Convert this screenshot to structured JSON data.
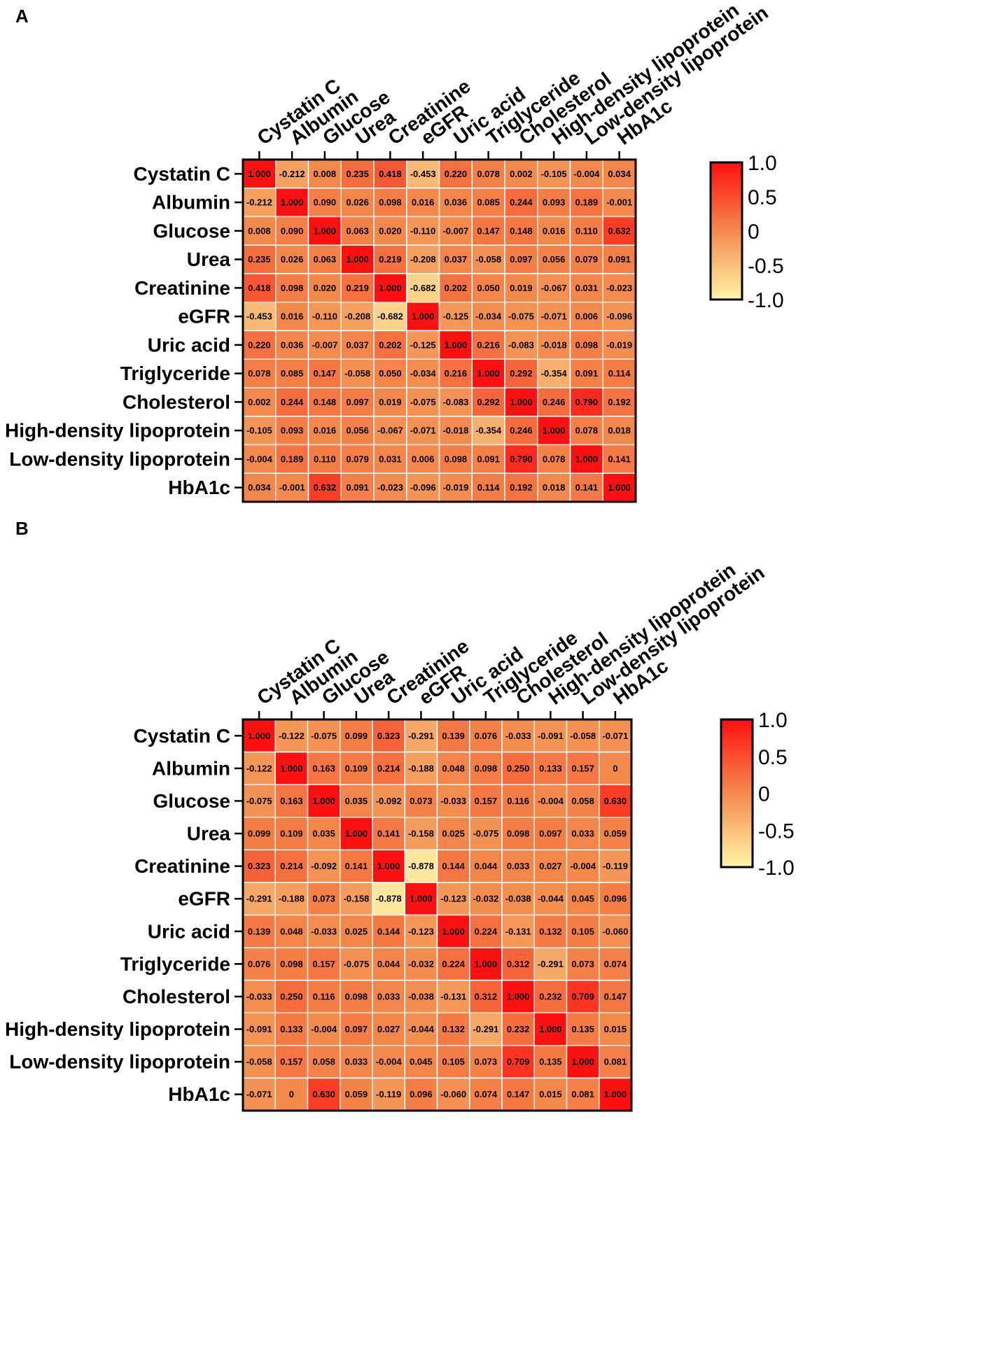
{
  "chart_data": [
    {
      "type": "heatmap",
      "panel": "A",
      "labels": [
        "Cystatin C",
        "Albumin",
        "Glucose",
        "Urea",
        "Creatinine",
        "eGFR",
        "Uric acid",
        "Triglyceride",
        "Cholesterol",
        "High-density lipoprotein",
        "Low-density lipoprotein",
        "HbA1c"
      ],
      "values": [
        [
          1.0,
          -0.212,
          0.008,
          0.235,
          0.418,
          -0.453,
          0.22,
          0.078,
          0.002,
          -0.105,
          -0.004,
          0.034
        ],
        [
          -0.212,
          1.0,
          0.09,
          0.026,
          0.098,
          0.016,
          0.036,
          0.085,
          0.244,
          0.093,
          0.189,
          -0.001
        ],
        [
          0.008,
          0.09,
          1.0,
          0.063,
          0.02,
          -0.11,
          -0.007,
          0.147,
          0.148,
          0.016,
          0.11,
          0.632
        ],
        [
          0.235,
          0.026,
          0.063,
          1.0,
          0.219,
          -0.208,
          0.037,
          -0.058,
          0.097,
          0.056,
          0.079,
          0.091
        ],
        [
          0.418,
          0.098,
          0.02,
          0.219,
          1.0,
          -0.682,
          0.202,
          0.05,
          0.019,
          -0.067,
          0.031,
          -0.023
        ],
        [
          -0.453,
          0.016,
          -0.11,
          -0.208,
          -0.682,
          1.0,
          -0.125,
          -0.034,
          -0.075,
          -0.071,
          0.006,
          -0.096
        ],
        [
          0.22,
          0.036,
          -0.007,
          0.037,
          0.202,
          -0.125,
          1.0,
          0.216,
          -0.083,
          -0.018,
          0.098,
          -0.019
        ],
        [
          0.078,
          0.085,
          0.147,
          -0.058,
          0.05,
          -0.034,
          0.216,
          1.0,
          0.292,
          -0.354,
          0.091,
          0.114
        ],
        [
          0.002,
          0.244,
          0.148,
          0.097,
          0.019,
          -0.075,
          -0.083,
          0.292,
          1.0,
          0.246,
          0.79,
          0.192
        ],
        [
          -0.105,
          0.093,
          0.016,
          0.056,
          -0.067,
          -0.071,
          -0.018,
          -0.354,
          0.246,
          1.0,
          0.078,
          0.018
        ],
        [
          -0.004,
          0.189,
          0.11,
          0.079,
          0.031,
          0.006,
          0.098,
          0.091,
          0.79,
          0.078,
          1.0,
          0.141
        ],
        [
          0.034,
          -0.001,
          0.632,
          0.091,
          -0.023,
          -0.096,
          -0.019,
          0.114,
          0.192,
          0.018,
          0.141,
          1.0
        ]
      ],
      "display": [
        [
          "1.000",
          "-0.212",
          "0.008",
          "0.235",
          "0.418",
          "-0.453",
          "0.220",
          "0.078",
          "0.002",
          "-0.105",
          "-0.004",
          "0.034"
        ],
        [
          "-0.212",
          "1.000",
          "0.090",
          "0.026",
          "0.098",
          "0.016",
          "0.036",
          "0.085",
          "0.244",
          "0.093",
          "0.189",
          "-0.001"
        ],
        [
          "0.008",
          "0.090",
          "1.000",
          "0.063",
          "0.020",
          "-0.110",
          "-0.007",
          "0.147",
          "0.148",
          "0.016",
          "0.110",
          "0.632"
        ],
        [
          "0.235",
          "0.026",
          "0.063",
          "1.000",
          "0.219",
          "-0.208",
          "0.037",
          "-0.058",
          "0.097",
          "0.056",
          "0.079",
          "0.091"
        ],
        [
          "0.418",
          "0.098",
          "0.020",
          "0.219",
          "1.000",
          "-0.682",
          "0.202",
          "0.050",
          "0.019",
          "-0.067",
          "0.031",
          "-0.023"
        ],
        [
          "-0.453",
          "0.016",
          "-0.110",
          "-0.208",
          "-0.682",
          "1.000",
          "-0.125",
          "-0.034",
          "-0.075",
          "-0.071",
          "0.006",
          "-0.096"
        ],
        [
          "0.220",
          "0.036",
          "-0.007",
          "0.037",
          "0.202",
          "-0.125",
          "1.000",
          "0.216",
          "-0.083",
          "-0.018",
          "0.098",
          "-0.019"
        ],
        [
          "0.078",
          "0.085",
          "0.147",
          "-0.058",
          "0.050",
          "-0.034",
          "0.216",
          "1.000",
          "0.292",
          "-0.354",
          "0.091",
          "0.114"
        ],
        [
          "0.002",
          "0.244",
          "0.148",
          "0.097",
          "0.019",
          "-0.075",
          "-0.083",
          "0.292",
          "1.000",
          "0.246",
          "0.790",
          "0.192"
        ],
        [
          "-0.105",
          "0.093",
          "0.016",
          "0.056",
          "-0.067",
          "-0.071",
          "-0.018",
          "-0.354",
          "0.246",
          "1.000",
          "0.078",
          "0.018"
        ],
        [
          "-0.004",
          "0.189",
          "0.110",
          "0.079",
          "0.031",
          "0.006",
          "0.098",
          "0.091",
          "0.790",
          "0.078",
          "1.000",
          "0.141"
        ],
        [
          "0.034",
          "-0.001",
          "0.632",
          "0.091",
          "-0.023",
          "-0.096",
          "-0.019",
          "0.114",
          "0.192",
          "0.018",
          "0.141",
          "1.000"
        ]
      ],
      "colorbar": {
        "ticks": [
          "1.0",
          "0.5",
          "0",
          "-0.5",
          "-1.0"
        ],
        "range": [
          -1.0,
          1.0
        ],
        "colors": {
          "low": "#fff5a8",
          "mid": "#f38a4c",
          "high": "#ff1010"
        }
      }
    },
    {
      "type": "heatmap",
      "panel": "B",
      "labels": [
        "Cystatin C",
        "Albumin",
        "Glucose",
        "Urea",
        "Creatinine",
        "eGFR",
        "Uric acid",
        "Triglyceride",
        "Cholesterol",
        "High-density lipoprotein",
        "Low-density lipoprotein",
        "HbA1c"
      ],
      "values": [
        [
          1.0,
          -0.122,
          -0.075,
          0.099,
          0.323,
          -0.291,
          0.139,
          0.076,
          -0.033,
          -0.091,
          -0.058,
          -0.071
        ],
        [
          -0.122,
          1.0,
          0.163,
          0.109,
          0.214,
          -0.188,
          0.048,
          0.098,
          0.25,
          0.133,
          0.157,
          0
        ],
        [
          -0.075,
          0.163,
          1.0,
          0.035,
          -0.092,
          0.073,
          -0.033,
          0.157,
          0.116,
          -0.004,
          0.058,
          0.63
        ],
        [
          0.099,
          0.109,
          0.035,
          1.0,
          0.141,
          -0.158,
          0.025,
          -0.075,
          0.098,
          0.097,
          0.033,
          0.059
        ],
        [
          0.323,
          0.214,
          -0.092,
          0.141,
          1.0,
          -0.878,
          0.144,
          0.044,
          0.033,
          0.027,
          -0.004,
          -0.119
        ],
        [
          -0.291,
          -0.188,
          0.073,
          -0.158,
          -0.878,
          1.0,
          -0.123,
          -0.032,
          -0.038,
          -0.044,
          0.045,
          0.096
        ],
        [
          0.139,
          0.048,
          -0.033,
          0.025,
          0.144,
          -0.123,
          1.0,
          0.224,
          -0.131,
          0.132,
          0.105,
          -0.06
        ],
        [
          0.076,
          0.098,
          0.157,
          -0.075,
          0.044,
          -0.032,
          0.224,
          1.0,
          0.312,
          -0.291,
          0.073,
          0.074
        ],
        [
          -0.033,
          0.25,
          0.116,
          0.098,
          0.033,
          -0.038,
          -0.131,
          0.312,
          1.0,
          0.232,
          0.709,
          0.147
        ],
        [
          -0.091,
          0.133,
          -0.004,
          0.097,
          0.027,
          -0.044,
          0.132,
          -0.291,
          0.232,
          1.0,
          0.135,
          0.015
        ],
        [
          -0.058,
          0.157,
          0.058,
          0.033,
          -0.004,
          0.045,
          0.105,
          0.073,
          0.709,
          0.135,
          1.0,
          0.081
        ],
        [
          -0.071,
          0,
          0.63,
          0.059,
          -0.119,
          0.096,
          -0.06,
          0.074,
          0.147,
          0.015,
          0.081,
          1.0
        ]
      ],
      "display": [
        [
          "1.000",
          "-0.122",
          "-0.075",
          "0.099",
          "0.323",
          "-0.291",
          "0.139",
          "0.076",
          "-0.033",
          "-0.091",
          "-0.058",
          "-0.071"
        ],
        [
          "-0.122",
          "1.000",
          "0.163",
          "0.109",
          "0.214",
          "-0.188",
          "0.048",
          "0.098",
          "0.250",
          "0.133",
          "0.157",
          "0"
        ],
        [
          "-0.075",
          "0.163",
          "1.000",
          "0.035",
          "-0.092",
          "0.073",
          "-0.033",
          "0.157",
          "0.116",
          "-0.004",
          "0.058",
          "0.630"
        ],
        [
          "0.099",
          "0.109",
          "0.035",
          "1.000",
          "0.141",
          "-0.158",
          "0.025",
          "-0.075",
          "0.098",
          "0.097",
          "0.033",
          "0.059"
        ],
        [
          "0.323",
          "0.214",
          "-0.092",
          "0.141",
          "1.000",
          "-0.878",
          "0.144",
          "0.044",
          "0.033",
          "0.027",
          "-0.004",
          "-0.119"
        ],
        [
          "-0.291",
          "-0.188",
          "0.073",
          "-0.158",
          "-0.878",
          "1.000",
          "-0.123",
          "-0.032",
          "-0.038",
          "-0.044",
          "0.045",
          "0.096"
        ],
        [
          "0.139",
          "0.048",
          "-0.033",
          "0.025",
          "0.144",
          "-0.123",
          "1.000",
          "0.224",
          "-0.131",
          "0.132",
          "0.105",
          "-0.060"
        ],
        [
          "0.076",
          "0.098",
          "0.157",
          "-0.075",
          "0.044",
          "-0.032",
          "0.224",
          "1.000",
          "0.312",
          "-0.291",
          "0.073",
          "0.074"
        ],
        [
          "-0.033",
          "0.250",
          "0.116",
          "0.098",
          "0.033",
          "-0.038",
          "-0.131",
          "0.312",
          "1.000",
          "0.232",
          "0.709",
          "0.147"
        ],
        [
          "-0.091",
          "0.133",
          "-0.004",
          "0.097",
          "0.027",
          "-0.044",
          "0.132",
          "-0.291",
          "0.232",
          "1.000",
          "0.135",
          "0.015"
        ],
        [
          "-0.058",
          "0.157",
          "0.058",
          "0.033",
          "-0.004",
          "0.045",
          "0.105",
          "0.073",
          "0.709",
          "0.135",
          "1.000",
          "0.081"
        ],
        [
          "-0.071",
          "0",
          "0.630",
          "0.059",
          "-0.119",
          "0.096",
          "-0.060",
          "0.074",
          "0.147",
          "0.015",
          "0.081",
          "1.000"
        ]
      ],
      "colorbar": {
        "ticks": [
          "1.0",
          "0.5",
          "0",
          "-0.5",
          "-1.0"
        ],
        "range": [
          -1.0,
          1.0
        ],
        "colors": {
          "low": "#fff5a8",
          "mid": "#f38a4c",
          "high": "#ff1010"
        }
      }
    }
  ]
}
